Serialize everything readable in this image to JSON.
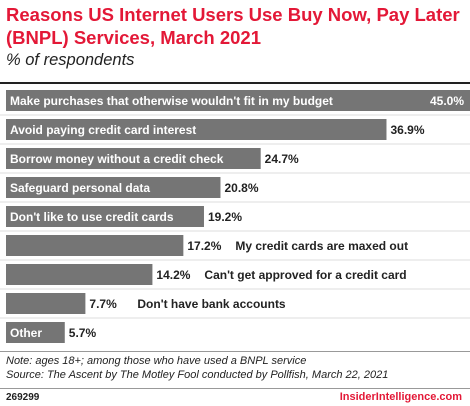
{
  "header": {
    "title": "Reasons US Internet Users Use Buy Now, Pay Later (BNPL) Services, March 2021",
    "subtitle": "% of respondents"
  },
  "chart_data": {
    "type": "bar",
    "orientation": "horizontal",
    "categories": [
      "Make purchases that otherwise wouldn't fit in my budget",
      "Avoid paying credit card interest",
      "Borrow money without a credit check",
      "Safeguard personal data",
      "Don't like to use credit cards",
      "My credit cards are maxed out",
      "Can't get approved for a credit card",
      "Don't have bank accounts",
      "Other"
    ],
    "values": [
      45.0,
      36.9,
      24.7,
      20.8,
      19.2,
      17.2,
      14.2,
      7.7,
      5.7
    ],
    "value_labels": [
      "45.0%",
      "36.9%",
      "24.7%",
      "20.8%",
      "19.2%",
      "17.2%",
      "14.2%",
      "7.7%",
      "5.7%"
    ],
    "label_inside_bar": [
      true,
      true,
      true,
      true,
      true,
      false,
      false,
      false,
      true
    ],
    "xlim": [
      0,
      45
    ],
    "bar_color": "#757575"
  },
  "notes": {
    "note": "Note: ages 18+; among those who have used a BNPL service",
    "source": "Source: The Ascent by The Motley Fool conducted by Pollfish, March 22, 2021"
  },
  "footer": {
    "chart_id": "269299",
    "brand": "InsiderIntelligence.com"
  },
  "colors": {
    "accent": "#e31837",
    "bar": "#757575",
    "text": "#222222"
  }
}
